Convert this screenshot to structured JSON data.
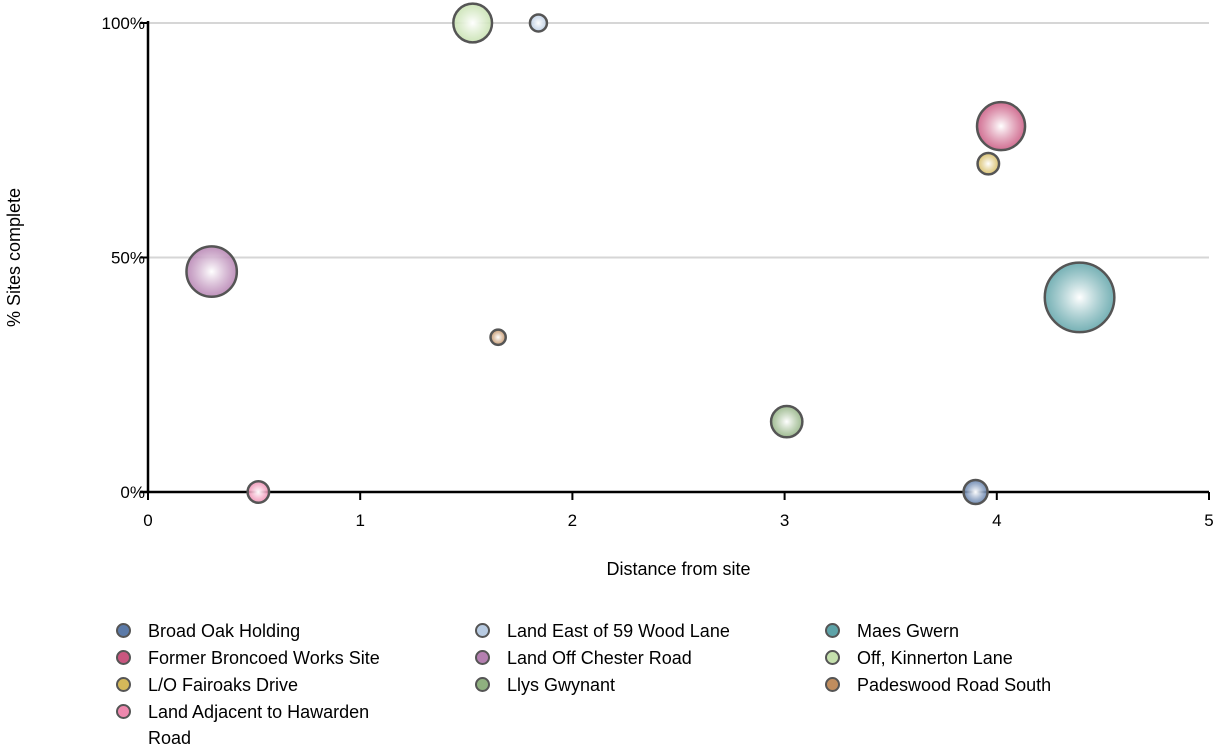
{
  "chart_data": {
    "type": "scatter",
    "subtype": "bubble",
    "xlabel": "Distance from site",
    "ylabel": "% Sites complete",
    "xlim": [
      0,
      5
    ],
    "ylim": [
      0,
      100
    ],
    "x_ticks": [
      "0",
      "1",
      "2",
      "3",
      "4",
      "5"
    ],
    "y_ticks": [
      "0%",
      "50%",
      "100%"
    ],
    "grid": "horizontal",
    "legend_position": "bottom",
    "series": [
      {
        "name": "Broad Oak Holding",
        "color": "#5b7aa8",
        "points": [
          {
            "x": 3.9,
            "y": 0,
            "size": 1
          }
        ]
      },
      {
        "name": "Former Broncoed Works Site",
        "color": "#c9567f",
        "points": [
          {
            "x": 4.02,
            "y": 78,
            "size": 4
          }
        ]
      },
      {
        "name": "L/O Fairoaks Drive",
        "color": "#d4b85a",
        "points": [
          {
            "x": 3.96,
            "y": 70,
            "size": 0.8
          }
        ]
      },
      {
        "name": "Land Adjacent to Hawarden Road",
        "color": "#ee88ae",
        "points": [
          {
            "x": 0.52,
            "y": 0,
            "size": 0.8
          }
        ]
      },
      {
        "name": "Land East of 59 Wood Lane",
        "color": "#b8cbe2",
        "points": [
          {
            "x": 1.84,
            "y": 100,
            "size": 0.5
          }
        ]
      },
      {
        "name": "Land Off Chester Road",
        "color": "#b47fb0",
        "points": [
          {
            "x": 0.3,
            "y": 47,
            "size": 4.4
          }
        ]
      },
      {
        "name": "Llys Gwynant",
        "color": "#8fb07f",
        "points": [
          {
            "x": 3.01,
            "y": 15,
            "size": 1.7
          }
        ]
      },
      {
        "name": "Maes Gwern",
        "color": "#5ea3a8",
        "points": [
          {
            "x": 4.39,
            "y": 41.5,
            "size": 8.4
          }
        ]
      },
      {
        "name": "Off, Kinnerton Lane",
        "color": "#c5e0ad",
        "points": [
          {
            "x": 1.53,
            "y": 100,
            "size": 2.6
          }
        ]
      },
      {
        "name": "Padeswood Road South",
        "color": "#c08d5e",
        "points": [
          {
            "x": 1.65,
            "y": 33,
            "size": 0.4
          }
        ]
      }
    ]
  }
}
